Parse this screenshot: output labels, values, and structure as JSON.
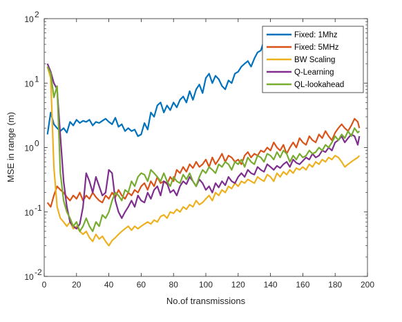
{
  "chart_data": {
    "type": "line",
    "xlabel": "No.of transmissions",
    "ylabel": "MSE in range (m)",
    "xlim": [
      0,
      200
    ],
    "ylim": [
      0.01,
      100
    ],
    "yscale": "log",
    "xticks": [
      0,
      20,
      40,
      60,
      80,
      100,
      120,
      140,
      160,
      180,
      200
    ],
    "yticks": [
      {
        "value": 0.01,
        "base": "10",
        "exp": "-2"
      },
      {
        "value": 0.1,
        "base": "10",
        "exp": "-1"
      },
      {
        "value": 1,
        "base": "10",
        "exp": "0"
      },
      {
        "value": 10,
        "base": "10",
        "exp": "1"
      },
      {
        "value": 100,
        "base": "10",
        "exp": "2"
      }
    ],
    "grid": false,
    "legend_position": "top-right",
    "series": [
      {
        "name": "Fixed: 1Mhz",
        "color": "#0072BD",
        "x": [
          2,
          4,
          6,
          8,
          10,
          12,
          14,
          16,
          18,
          20,
          22,
          24,
          26,
          28,
          30,
          32,
          34,
          36,
          38,
          40,
          42,
          44,
          46,
          48,
          50,
          52,
          54,
          56,
          58,
          60,
          62,
          64,
          66,
          68,
          70,
          72,
          74,
          76,
          78,
          80,
          82,
          84,
          86,
          88,
          90,
          92,
          94,
          96,
          98,
          100,
          102,
          104,
          106,
          108,
          110,
          112,
          114,
          116,
          118,
          120,
          122,
          124,
          126,
          128,
          130,
          132,
          134,
          136
        ],
        "y": [
          1.6,
          3.5,
          2.3,
          2.0,
          1.8,
          2.0,
          1.7,
          2.5,
          2.2,
          2.7,
          2.4,
          2.6,
          2.5,
          2.7,
          2.2,
          2.5,
          2.4,
          2.6,
          2.8,
          2.5,
          2.3,
          2.9,
          2.1,
          2.3,
          1.8,
          2.0,
          1.8,
          1.9,
          1.5,
          1.6,
          2.4,
          1.9,
          3.5,
          3.0,
          4.5,
          5.0,
          3.5,
          4.5,
          3.8,
          5.0,
          4.2,
          5.5,
          6.2,
          5.0,
          7.5,
          5.5,
          8.0,
          9.5,
          7.0,
          12.0,
          14.0,
          10.0,
          13.0,
          11.5,
          9.0,
          8.0,
          11.0,
          10.0,
          14.0,
          15.0,
          18.0,
          20.0,
          22.0,
          18.0,
          24.0,
          30.0,
          32.0,
          45.0
        ]
      },
      {
        "name": "Fixed: 5MHz",
        "color": "#D95319",
        "x": [
          2,
          4,
          6,
          8,
          10,
          12,
          14,
          16,
          18,
          20,
          22,
          24,
          26,
          28,
          30,
          32,
          34,
          36,
          38,
          40,
          42,
          44,
          46,
          48,
          50,
          52,
          54,
          56,
          58,
          60,
          62,
          64,
          66,
          68,
          70,
          72,
          74,
          76,
          78,
          80,
          82,
          84,
          86,
          88,
          90,
          92,
          94,
          96,
          98,
          100,
          102,
          104,
          106,
          108,
          110,
          112,
          114,
          116,
          118,
          120,
          122,
          124,
          126,
          128,
          130,
          132,
          134,
          136,
          138,
          140,
          142,
          144,
          146,
          148,
          150,
          152,
          154,
          156,
          158,
          160,
          162,
          164,
          166,
          168,
          170,
          172,
          174,
          176,
          178,
          180,
          182,
          184,
          186,
          188,
          190,
          192,
          194,
          195
        ],
        "y": [
          0.14,
          0.12,
          0.18,
          0.25,
          0.22,
          0.2,
          0.17,
          0.15,
          0.18,
          0.16,
          0.2,
          0.15,
          0.18,
          0.16,
          0.2,
          0.17,
          0.15,
          0.14,
          0.18,
          0.16,
          0.2,
          0.17,
          0.22,
          0.18,
          0.16,
          0.2,
          0.18,
          0.22,
          0.2,
          0.25,
          0.28,
          0.22,
          0.3,
          0.25,
          0.35,
          0.28,
          0.3,
          0.27,
          0.35,
          0.3,
          0.45,
          0.4,
          0.5,
          0.42,
          0.55,
          0.48,
          0.6,
          0.5,
          0.55,
          0.65,
          0.5,
          0.7,
          0.55,
          0.65,
          0.8,
          0.6,
          0.75,
          0.7,
          0.6,
          0.65,
          0.55,
          0.75,
          0.85,
          0.7,
          0.8,
          0.75,
          0.9,
          0.85,
          1.0,
          0.9,
          1.2,
          1.0,
          0.9,
          1.1,
          0.8,
          1.0,
          1.2,
          1.0,
          1.4,
          1.2,
          1.1,
          1.5,
          1.3,
          1.2,
          1.6,
          1.4,
          1.8,
          1.5,
          1.3,
          1.7,
          2.0,
          2.3,
          2.0,
          1.8,
          2.2,
          2.8,
          2.5,
          2.0
        ]
      },
      {
        "name": "BW Scaling",
        "color": "#EDB120",
        "x": [
          2,
          4,
          6,
          8,
          10,
          12,
          14,
          16,
          18,
          20,
          22,
          24,
          26,
          28,
          30,
          32,
          34,
          36,
          38,
          40,
          42,
          44,
          46,
          48,
          50,
          52,
          54,
          56,
          58,
          60,
          62,
          64,
          66,
          68,
          70,
          72,
          74,
          76,
          78,
          80,
          82,
          84,
          86,
          88,
          90,
          92,
          94,
          96,
          98,
          100,
          102,
          104,
          106,
          108,
          110,
          112,
          114,
          116,
          118,
          120,
          122,
          124,
          126,
          128,
          130,
          132,
          134,
          136,
          138,
          140,
          142,
          144,
          146,
          148,
          150,
          152,
          154,
          156,
          158,
          160,
          162,
          164,
          166,
          168,
          170,
          172,
          174,
          176,
          178,
          180,
          182,
          184,
          186,
          188,
          190,
          192,
          194,
          195
        ],
        "y": [
          18.0,
          12.0,
          0.5,
          0.12,
          0.08,
          0.07,
          0.06,
          0.07,
          0.055,
          0.06,
          0.05,
          0.045,
          0.05,
          0.04,
          0.035,
          0.045,
          0.038,
          0.042,
          0.035,
          0.03,
          0.036,
          0.04,
          0.045,
          0.05,
          0.055,
          0.06,
          0.052,
          0.06,
          0.055,
          0.06,
          0.065,
          0.07,
          0.065,
          0.075,
          0.07,
          0.085,
          0.09,
          0.08,
          0.1,
          0.095,
          0.11,
          0.1,
          0.12,
          0.11,
          0.13,
          0.12,
          0.15,
          0.13,
          0.14,
          0.16,
          0.18,
          0.15,
          0.2,
          0.18,
          0.22,
          0.2,
          0.25,
          0.23,
          0.28,
          0.25,
          0.3,
          0.28,
          0.32,
          0.3,
          0.28,
          0.35,
          0.32,
          0.3,
          0.38,
          0.35,
          0.3,
          0.4,
          0.35,
          0.42,
          0.38,
          0.45,
          0.4,
          0.48,
          0.45,
          0.5,
          0.45,
          0.55,
          0.5,
          0.6,
          0.55,
          0.65,
          0.6,
          0.7,
          0.65,
          0.75,
          0.7,
          0.6,
          0.5,
          0.55,
          0.6,
          0.65,
          0.7,
          0.75
        ]
      },
      {
        "name": "Q-Learning",
        "color": "#7E2F8E",
        "x": [
          2,
          4,
          6,
          8,
          10,
          12,
          14,
          16,
          18,
          20,
          22,
          24,
          26,
          28,
          30,
          32,
          34,
          36,
          38,
          40,
          42,
          44,
          46,
          48,
          50,
          52,
          54,
          56,
          58,
          60,
          62,
          64,
          66,
          68,
          70,
          72,
          74,
          76,
          78,
          80,
          82,
          84,
          86,
          88,
          90,
          92,
          94,
          96,
          98,
          100,
          102,
          104,
          106,
          108,
          110,
          112,
          114,
          116,
          118,
          120,
          122,
          124,
          126,
          128,
          130,
          132,
          134,
          136,
          138,
          140,
          142,
          144,
          146,
          148,
          150,
          152,
          154,
          156,
          158,
          160,
          162,
          164,
          166,
          168,
          170,
          172,
          174,
          176,
          178,
          180,
          182,
          184,
          186,
          188,
          190,
          192,
          194,
          195
        ],
        "y": [
          20.0,
          15.0,
          10.0,
          8.0,
          1.5,
          0.3,
          0.12,
          0.07,
          0.06,
          0.055,
          0.065,
          0.12,
          0.4,
          0.3,
          0.2,
          0.35,
          0.25,
          0.18,
          0.2,
          0.45,
          0.4,
          0.15,
          0.1,
          0.08,
          0.1,
          0.12,
          0.15,
          0.12,
          0.18,
          0.15,
          0.14,
          0.2,
          0.16,
          0.22,
          0.25,
          0.18,
          0.3,
          0.28,
          0.2,
          0.22,
          0.18,
          0.25,
          0.3,
          0.27,
          0.35,
          0.3,
          0.25,
          0.32,
          0.28,
          0.22,
          0.25,
          0.2,
          0.28,
          0.24,
          0.3,
          0.26,
          0.35,
          0.3,
          0.28,
          0.35,
          0.4,
          0.35,
          0.45,
          0.4,
          0.38,
          0.5,
          0.45,
          0.42,
          0.55,
          0.5,
          0.45,
          0.52,
          0.48,
          0.55,
          0.6,
          0.5,
          0.65,
          0.58,
          0.55,
          0.62,
          0.7,
          0.65,
          0.8,
          0.7,
          0.75,
          0.9,
          0.85,
          1.0,
          0.9,
          1.2,
          1.3,
          1.5,
          1.2,
          1.4,
          1.6,
          1.5,
          1.1,
          1.5
        ]
      },
      {
        "name": "QL-lookahead",
        "color": "#77AC30",
        "x": [
          2,
          4,
          6,
          8,
          10,
          12,
          14,
          16,
          18,
          20,
          22,
          24,
          26,
          28,
          30,
          32,
          34,
          36,
          38,
          40,
          42,
          44,
          46,
          48,
          50,
          52,
          54,
          56,
          58,
          60,
          62,
          64,
          66,
          68,
          70,
          72,
          74,
          76,
          78,
          80,
          82,
          84,
          86,
          88,
          90,
          92,
          94,
          96,
          98,
          100,
          102,
          104,
          106,
          108,
          110,
          112,
          114,
          116,
          118,
          120,
          122,
          124,
          126,
          128,
          130,
          132,
          134,
          136,
          138,
          140,
          142,
          144,
          146,
          148,
          150,
          152,
          154,
          156,
          158,
          160,
          162,
          164,
          166,
          168,
          170,
          172,
          174,
          176,
          178,
          180,
          182,
          184,
          186,
          188,
          190,
          192,
          194,
          195
        ],
        "y": [
          18.0,
          14.0,
          6.0,
          9.0,
          0.4,
          0.15,
          0.1,
          0.08,
          0.06,
          0.07,
          0.05,
          0.06,
          0.08,
          0.06,
          0.05,
          0.07,
          0.06,
          0.09,
          0.08,
          0.1,
          0.15,
          0.2,
          0.18,
          0.15,
          0.22,
          0.2,
          0.3,
          0.25,
          0.35,
          0.4,
          0.38,
          0.3,
          0.45,
          0.4,
          0.35,
          0.3,
          0.4,
          0.3,
          0.25,
          0.35,
          0.3,
          0.28,
          0.38,
          0.32,
          0.4,
          0.3,
          0.25,
          0.35,
          0.45,
          0.4,
          0.5,
          0.45,
          0.4,
          0.55,
          0.5,
          0.6,
          0.55,
          0.45,
          0.6,
          0.55,
          0.65,
          0.5,
          0.7,
          0.6,
          0.55,
          0.75,
          0.7,
          0.6,
          0.8,
          0.75,
          0.65,
          0.85,
          0.7,
          0.9,
          0.8,
          0.6,
          0.75,
          0.65,
          0.8,
          0.7,
          0.75,
          0.9,
          0.8,
          0.85,
          1.0,
          0.9,
          1.1,
          1.0,
          1.2,
          1.5,
          1.3,
          1.6,
          1.4,
          1.8,
          1.5,
          2.0,
          1.7,
          1.8
        ]
      }
    ]
  }
}
